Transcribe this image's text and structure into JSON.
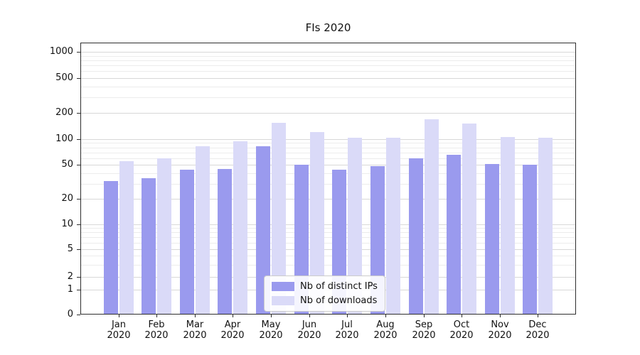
{
  "title": "FIs 2020",
  "colors": {
    "distinct_ips": "#9a9aee",
    "downloads": "#dadaf8",
    "grid_major": "#d8d8d8",
    "grid_minor": "#ececec",
    "axis": "#2e2e2e"
  },
  "legend": {
    "items": [
      {
        "label": "Nb of distinct IPs",
        "key": "distinct-ips"
      },
      {
        "label": "Nb of downloads",
        "key": "downloads"
      }
    ]
  },
  "chart_data": {
    "type": "bar",
    "title": "FIs 2020",
    "scale": "symlog",
    "grid": true,
    "legend_position": "lower center",
    "categories": [
      "Jan 2020",
      "Feb 2020",
      "Mar 2020",
      "Apr 2020",
      "May 2020",
      "Jun 2020",
      "Jul 2020",
      "Aug 2020",
      "Sep 2020",
      "Oct 2020",
      "Nov 2020",
      "Dec 2020"
    ],
    "series": [
      {
        "name": "Nb of distinct IPs",
        "key": "distinct-ips",
        "color": "#9a9aee",
        "values": [
          32,
          35,
          44,
          45,
          83,
          50,
          44,
          48,
          60,
          65,
          51,
          50
        ]
      },
      {
        "name": "Nb of downloads",
        "key": "downloads",
        "color": "#dadaf8",
        "values": [
          55,
          60,
          82,
          95,
          155,
          120,
          103,
          103,
          170,
          152,
          105,
          103
        ]
      }
    ],
    "y_ticks": [
      0,
      1,
      2,
      5,
      10,
      20,
      50,
      100,
      200,
      500,
      1000
    ],
    "y_minor_ticks": [
      3,
      4,
      6,
      7,
      8,
      9,
      30,
      40,
      60,
      70,
      80,
      90,
      300,
      400,
      600,
      700,
      800,
      900
    ],
    "ylim": [
      0,
      1300
    ],
    "xlabel": "",
    "ylabel": ""
  }
}
